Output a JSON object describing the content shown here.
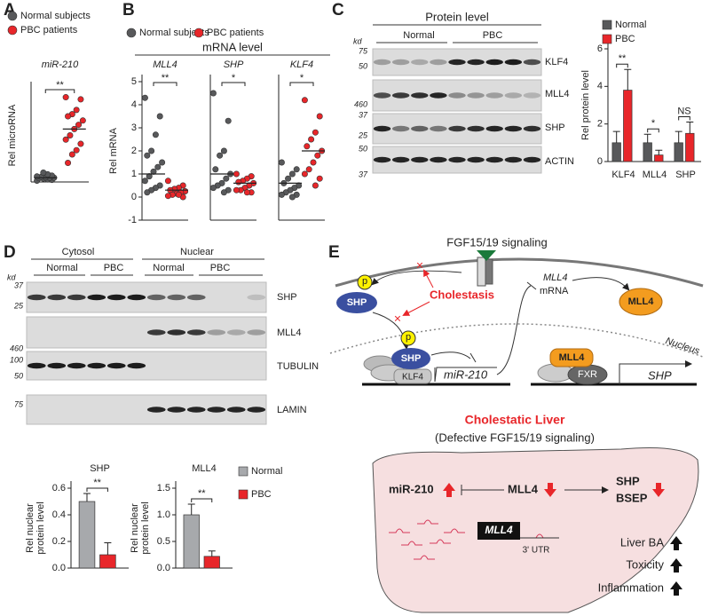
{
  "panel_labels": [
    "A",
    "B",
    "C",
    "D",
    "E"
  ],
  "panel_b_title": "mRNA level",
  "chart_data": [
    {
      "type": "strip",
      "title": "miR-210",
      "y_label": "Rel microRNA",
      "ylim": [
        0,
        22
      ],
      "series": [
        {
          "name": "Normal subjects",
          "color": "#58595b",
          "values": [
            0.3,
            0.5,
            0.6,
            0.8,
            0.9,
            1.0,
            1.0,
            1.1,
            1.2,
            1.3,
            1.5,
            1.8,
            2.2
          ],
          "mean": 1.0
        },
        {
          "name": "PBC patients",
          "color": "#e8262a",
          "values": [
            20.0,
            19.5,
            17.0,
            16.0,
            15.5,
            14.5,
            13.5,
            12.5,
            11.0,
            10.0,
            9.0,
            7.5,
            6.5,
            4.5
          ],
          "mean": 12.5
        }
      ],
      "significance": "**"
    },
    {
      "type": "strip",
      "title": "MLL4",
      "y_label": "Rel mRNA",
      "ylim": [
        -1,
        5
      ],
      "yticks": [
        -1,
        0,
        1,
        2,
        3,
        4,
        5
      ],
      "series": [
        {
          "name": "Normal subjects",
          "color": "#58595b",
          "values": [
            4.3,
            3.5,
            2.7,
            2.0,
            1.8,
            1.5,
            1.3,
            1.1,
            0.9,
            0.7,
            0.5,
            0.4,
            0.3,
            0.2
          ],
          "mean": 1.0
        },
        {
          "name": "PBC patients",
          "color": "#e8262a",
          "values": [
            0.7,
            0.5,
            0.4,
            0.35,
            0.3,
            0.25,
            0.2,
            0.15,
            0.1,
            0.05,
            0.0,
            0.1
          ],
          "mean": 0.3
        }
      ],
      "significance": "**"
    },
    {
      "type": "strip",
      "title": "SHP",
      "ylim": [
        -1,
        5
      ],
      "series": [
        {
          "color": "#58595b",
          "values": [
            4.5,
            3.3,
            2.0,
            1.8,
            1.2,
            1.0,
            0.8,
            0.6,
            0.5,
            0.4,
            0.3,
            0.2
          ],
          "mean": 1.0
        },
        {
          "color": "#e8262a",
          "values": [
            1.0,
            0.9,
            0.8,
            0.7,
            0.65,
            0.6,
            0.5,
            0.4,
            0.3,
            0.3,
            0.2,
            0.2
          ],
          "mean": 0.6
        }
      ],
      "significance": "*"
    },
    {
      "type": "strip",
      "title": "KLF4",
      "ylim": [
        -1,
        5
      ],
      "series": [
        {
          "color": "#58595b",
          "values": [
            1.5,
            1.2,
            1.0,
            0.8,
            0.6,
            0.5,
            0.4,
            0.3,
            0.2,
            0.1,
            0.1,
            0.0
          ],
          "mean": 0.6
        },
        {
          "color": "#e8262a",
          "values": [
            4.2,
            3.5,
            2.8,
            2.5,
            2.2,
            2.0,
            1.8,
            1.5,
            1.2,
            1.0,
            0.8,
            0.5
          ],
          "mean": 2.0
        }
      ],
      "significance": "*"
    },
    {
      "type": "bar",
      "y_label": "Rel protein level",
      "categories": [
        "KLF4",
        "MLL4",
        "SHP"
      ],
      "ylim": [
        0,
        6
      ],
      "yticks": [
        0,
        2,
        4,
        6
      ],
      "series": [
        {
          "name": "Normal",
          "color": "#58595b",
          "values": [
            1.0,
            1.0,
            1.0
          ],
          "errors": [
            0.6,
            0.45,
            0.6
          ]
        },
        {
          "name": "PBC",
          "color": "#e8262a",
          "values": [
            3.8,
            0.35,
            1.5
          ],
          "errors": [
            1.1,
            0.25,
            0.6
          ]
        }
      ],
      "significance": [
        "**",
        "*",
        "NS"
      ]
    },
    {
      "type": "bar",
      "title": "SHP",
      "y_label": [
        "Rel nuclear",
        "protein level"
      ],
      "ylim": [
        0,
        0.6
      ],
      "yticks": [
        {
          "value": 0,
          "label": "0.0"
        },
        0.2,
        0.4,
        0.6
      ],
      "series": [
        {
          "color": "#a7a9ac",
          "values": [
            0.5
          ],
          "errors": [
            0.06
          ]
        },
        {
          "color": "#e8262a",
          "values": [
            0.1
          ],
          "errors": [
            0.09
          ]
        }
      ],
      "significance": [
        "**"
      ]
    },
    {
      "type": "bar",
      "title": "MLL4",
      "y_label": [
        "Rel nuclear",
        "protein level"
      ],
      "ylim": [
        0,
        1.5
      ],
      "yticks": [
        {
          "value": 0,
          "label": "0.0"
        },
        0.5,
        {
          "value": 1,
          "label": "1.0"
        },
        1.5
      ],
      "series": [
        {
          "name": "Normal",
          "color": "#a7a9ac",
          "values": [
            1.0
          ],
          "errors": [
            0.2
          ]
        },
        {
          "name": "PBC",
          "color": "#e8262a",
          "values": [
            0.22
          ],
          "errors": [
            0.1
          ]
        }
      ],
      "significance": [
        "**"
      ]
    }
  ],
  "blot_c": {
    "title": "Protein level",
    "groups": [
      "Normal",
      "PBC"
    ],
    "unit": "kd",
    "markers": [
      75,
      50,
      460,
      37,
      25,
      50,
      37
    ],
    "bands": [
      "KLF4",
      "MLL4",
      "SHP",
      "ACTIN"
    ]
  },
  "blot_d": {
    "compartments": [
      "Cytosol",
      "Nuclear"
    ],
    "groups": [
      "Normal",
      "PBC",
      "Normal",
      "PBC"
    ],
    "unit": "kd",
    "markers": [
      37,
      25,
      460,
      100,
      50,
      75
    ],
    "bands": [
      "SHP",
      "MLL4",
      "TUBULIN",
      "LAMIN"
    ]
  },
  "diagram": {
    "signal": "FGF15/19 signaling",
    "cholestasis": "Cholestasis",
    "shp_cyto": "SHP",
    "p_cyto": "p",
    "shp_nuc": "SHP",
    "p_nuc": "p",
    "klf4": "KLF4",
    "mir210": "miR-210",
    "mll4_mrna": "MLL4",
    "mrna": "mRNA",
    "mll4_cyto": "MLL4",
    "nucleus": "Nucleus",
    "mll4_nuc": "MLL4",
    "fxr": "FXR",
    "shp_gene": "SHP",
    "liver_title": "Cholestatic Liver",
    "liver_subtitle": "(Defective FGF15/19 signaling)",
    "mir210_liver": "miR-210",
    "mll4_liver": "MLL4",
    "shp_liver": "SHP",
    "bsep": "BSEP",
    "mll4_transcript": "MLL4",
    "utr": "3' UTR",
    "outcomes": [
      "Liver BA",
      "Toxicity",
      "Inflammation"
    ]
  }
}
